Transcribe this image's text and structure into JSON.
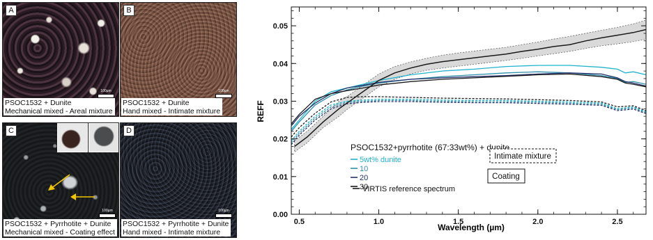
{
  "panels": [
    {
      "letter": "A",
      "caption1": "PSOC1532 + Dunite",
      "caption2": "Mechanical mixed - Areal mixture",
      "scale": "100µm"
    },
    {
      "letter": "B",
      "caption1": "PSOC1532 + Dunite",
      "caption2": "Hand mixed - Intimate mixture",
      "scale": "100µm"
    },
    {
      "letter": "C",
      "caption1": "PSOC1532 + Pyrrhotite + Dunite",
      "caption2": "Mechanical mixed - Coating effect",
      "scale": "100µm"
    },
    {
      "letter": "D",
      "caption1": "PSOC1532 + Pyrrhotite + Dunite",
      "caption2": "Hand mixed - Intimate mixture",
      "scale": "100µm"
    }
  ],
  "colors": {
    "black": "#1a1a1a",
    "cyan": "#1fb3cc",
    "teal": "#2f8fa8",
    "navy": "#23306a",
    "shade": "#d9d9d9",
    "arrow": "#f2c500"
  },
  "chart_data": {
    "type": "line",
    "title": "",
    "xlabel": "Wavelength (µm)",
    "ylabel": "REFF",
    "xlim": [
      0.45,
      2.68
    ],
    "ylim": [
      0,
      0.055
    ],
    "xticks": [
      0.5,
      1.0,
      1.5,
      2.0,
      2.5
    ],
    "xtick_labels": [
      "0.5",
      "1.0",
      "1.5",
      "2.0",
      "2.5"
    ],
    "yticks": [
      0,
      0.01,
      0.02,
      0.03,
      0.04,
      0.05
    ],
    "ytick_labels": [
      "0.00",
      "0.01",
      "0.02",
      "0.03",
      "0.04",
      "0.05"
    ],
    "legend_title": "PSOC1532+pyrrhotite (67:33wt%) + dunite",
    "legend_entries": [
      "5wt% dunite",
      "10",
      "20",
      "30"
    ],
    "box_labels": [
      "Intimate mixture",
      "Coating"
    ],
    "reference_label": "VIRTIS reference spectrum",
    "reference": {
      "color_key": "black",
      "x": [
        0.47,
        0.55,
        0.65,
        0.75,
        0.8,
        0.9,
        1.0,
        1.1,
        1.2,
        1.3,
        1.4,
        1.5,
        1.6,
        1.7,
        1.8,
        1.9,
        2.0,
        2.1,
        2.2,
        2.3,
        2.4,
        2.5,
        2.6,
        2.68
      ],
      "y": [
        0.018,
        0.0205,
        0.0245,
        0.028,
        0.0295,
        0.0325,
        0.0355,
        0.0375,
        0.0388,
        0.0398,
        0.0405,
        0.041,
        0.0415,
        0.042,
        0.0425,
        0.0432,
        0.0438,
        0.0445,
        0.045,
        0.046,
        0.0468,
        0.0475,
        0.0482,
        0.049
      ],
      "band_lower": [
        0.0165,
        0.019,
        0.023,
        0.026,
        0.0278,
        0.0308,
        0.0338,
        0.0358,
        0.0372,
        0.0382,
        0.0388,
        0.0393,
        0.0398,
        0.0403,
        0.0408,
        0.0414,
        0.042,
        0.0426,
        0.0432,
        0.044,
        0.0447,
        0.0452,
        0.0458,
        0.0465
      ],
      "band_upper": [
        0.0195,
        0.022,
        0.026,
        0.03,
        0.0312,
        0.0342,
        0.0372,
        0.0392,
        0.0404,
        0.0414,
        0.0422,
        0.0428,
        0.0433,
        0.0438,
        0.0443,
        0.045,
        0.0457,
        0.0465,
        0.0472,
        0.048,
        0.0488,
        0.0496,
        0.0505,
        0.0515
      ]
    },
    "series": [
      {
        "name": "5wt% dunite",
        "group": "Coating",
        "dash": false,
        "color_key": "cyan",
        "x": [
          0.45,
          0.5,
          0.6,
          0.7,
          0.8,
          0.9,
          1.0,
          1.2,
          1.4,
          1.6,
          1.8,
          2.0,
          2.2,
          2.4,
          2.5,
          2.55,
          2.6,
          2.68
        ],
        "y": [
          0.0225,
          0.025,
          0.03,
          0.0325,
          0.0335,
          0.0345,
          0.0355,
          0.037,
          0.038,
          0.0385,
          0.0392,
          0.0395,
          0.0395,
          0.039,
          0.0385,
          0.0375,
          0.0378,
          0.037
        ]
      },
      {
        "name": "10",
        "group": "Coating",
        "dash": false,
        "color_key": "teal",
        "x": [
          0.45,
          0.5,
          0.6,
          0.7,
          0.8,
          0.9,
          1.0,
          1.2,
          1.4,
          1.6,
          1.8,
          2.0,
          2.2,
          2.4,
          2.5,
          2.55,
          2.6,
          2.68
        ],
        "y": [
          0.022,
          0.0245,
          0.029,
          0.0315,
          0.033,
          0.034,
          0.0348,
          0.0358,
          0.0365,
          0.037,
          0.0375,
          0.0378,
          0.0375,
          0.0368,
          0.036,
          0.035,
          0.0352,
          0.0345
        ]
      },
      {
        "name": "20",
        "group": "Coating",
        "dash": false,
        "color_key": "navy",
        "x": [
          0.45,
          0.5,
          0.6,
          0.7,
          0.8,
          0.9,
          1.0,
          1.2,
          1.4,
          1.6,
          1.8,
          2.0,
          2.2,
          2.4,
          2.5,
          2.55,
          2.6,
          2.68
        ],
        "y": [
          0.0235,
          0.026,
          0.0295,
          0.032,
          0.0335,
          0.0342,
          0.035,
          0.0358,
          0.0362,
          0.0365,
          0.0368,
          0.0372,
          0.0375,
          0.0372,
          0.0362,
          0.0352,
          0.0348,
          0.034
        ]
      },
      {
        "name": "30",
        "group": "Coating",
        "dash": false,
        "color_key": "black",
        "x": [
          0.45,
          0.5,
          0.6,
          0.7,
          0.8,
          0.9,
          1.0,
          1.2,
          1.4,
          1.6,
          1.8,
          2.0,
          2.2,
          2.4,
          2.5,
          2.55,
          2.6,
          2.68
        ],
        "y": [
          0.024,
          0.0265,
          0.0305,
          0.032,
          0.0328,
          0.0335,
          0.0343,
          0.0352,
          0.0358,
          0.0362,
          0.0366,
          0.037,
          0.0372,
          0.0365,
          0.0358,
          0.0348,
          0.0345,
          0.0338
        ]
      },
      {
        "name": "5wt% dunite",
        "group": "Intimate mixture",
        "dash": true,
        "color_key": "cyan",
        "x": [
          0.45,
          0.5,
          0.6,
          0.7,
          0.8,
          0.9,
          1.0,
          1.2,
          1.4,
          1.6,
          1.8,
          2.0,
          2.2,
          2.4,
          2.5,
          2.6,
          2.68
        ],
        "y": [
          0.0195,
          0.022,
          0.026,
          0.029,
          0.03,
          0.0303,
          0.0305,
          0.0305,
          0.0303,
          0.0302,
          0.0302,
          0.03,
          0.0298,
          0.0295,
          0.028,
          0.0285,
          0.0272
        ]
      },
      {
        "name": "10",
        "group": "Intimate mixture",
        "dash": true,
        "color_key": "teal",
        "x": [
          0.45,
          0.5,
          0.6,
          0.7,
          0.8,
          0.9,
          1.0,
          1.2,
          1.4,
          1.6,
          1.8,
          2.0,
          2.2,
          2.4,
          2.5,
          2.6,
          2.68
        ],
        "y": [
          0.019,
          0.0215,
          0.0255,
          0.0285,
          0.0297,
          0.03,
          0.0302,
          0.0302,
          0.03,
          0.0299,
          0.0299,
          0.0297,
          0.0295,
          0.0292,
          0.0278,
          0.0282,
          0.027
        ]
      },
      {
        "name": "20",
        "group": "Intimate mixture",
        "dash": true,
        "color_key": "navy",
        "x": [
          0.45,
          0.5,
          0.6,
          0.7,
          0.8,
          0.9,
          1.0,
          1.2,
          1.4,
          1.6,
          1.8,
          2.0,
          2.2,
          2.4,
          2.5,
          2.6,
          2.68
        ],
        "y": [
          0.0185,
          0.021,
          0.025,
          0.028,
          0.0293,
          0.0297,
          0.0299,
          0.0299,
          0.0297,
          0.0296,
          0.0296,
          0.0294,
          0.0292,
          0.0289,
          0.0275,
          0.0279,
          0.0267
        ]
      },
      {
        "name": "30",
        "group": "Intimate mixture",
        "dash": true,
        "color_key": "black",
        "x": [
          0.45,
          0.5,
          0.6,
          0.7,
          0.8,
          0.9,
          1.0,
          1.2,
          1.4,
          1.6,
          1.8,
          2.0,
          2.2,
          2.4,
          2.5,
          2.6,
          2.68
        ],
        "y": [
          0.0205,
          0.023,
          0.0268,
          0.0298,
          0.031,
          0.0312,
          0.0312,
          0.031,
          0.0308,
          0.0307,
          0.0306,
          0.0304,
          0.0302,
          0.0298,
          0.0285,
          0.0288,
          0.0275
        ]
      }
    ]
  }
}
